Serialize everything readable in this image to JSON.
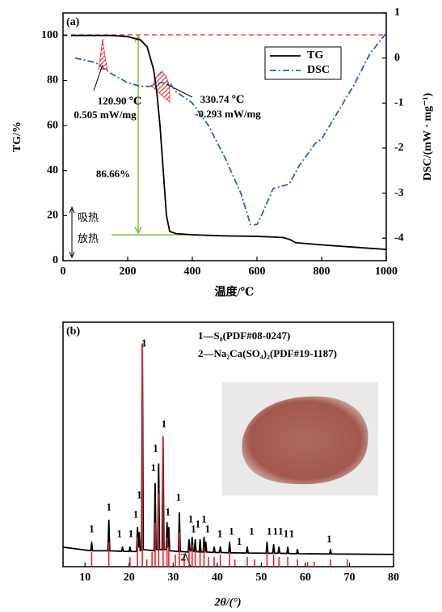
{
  "chart_data": [
    {
      "type": "line",
      "label": "(a)",
      "x_label": "温度/℃",
      "y_label": "TG/%",
      "y2_label": "DSC/(mW · mg⁻¹)",
      "xlim": [
        0,
        1000
      ],
      "xticks": [
        0,
        200,
        400,
        600,
        800,
        1000
      ],
      "ylim": [
        0,
        110
      ],
      "yticks": [
        0,
        20,
        40,
        60,
        80,
        100
      ],
      "y2lim": [
        -4.5,
        1.0
      ],
      "y2ticks": [
        -4,
        -3,
        -2,
        -1,
        0,
        1
      ],
      "legend": "upper right",
      "series": [
        {
          "name": "TG",
          "color": "#000000",
          "x": [
            25,
            150,
            200,
            240,
            260,
            280,
            290,
            300,
            310,
            320,
            330,
            350,
            400,
            500,
            600,
            680,
            700,
            720,
            800,
            900,
            1000
          ],
          "values": [
            100,
            100,
            99.5,
            98,
            95,
            85,
            75,
            60,
            40,
            20,
            13,
            12,
            11.5,
            11,
            10.8,
            10.3,
            9.5,
            8,
            7,
            6,
            5
          ]
        },
        {
          "name": "DSC",
          "color": "#2b5fc2",
          "dash": "8 3 2 3",
          "axis": "y2",
          "x": [
            37,
            100,
            150,
            200,
            240,
            270,
            300,
            330,
            350,
            400,
            450,
            500,
            550,
            580,
            600,
            620,
            650,
            700,
            730,
            780,
            800,
            850,
            900,
            950,
            1000
          ],
          "values": [
            0,
            -0.1,
            -0.35,
            -0.55,
            -0.63,
            -0.63,
            -0.55,
            -0.55,
            -0.75,
            -1.0,
            -1.5,
            -2.2,
            -3.0,
            -3.7,
            -3.7,
            -3.4,
            -2.9,
            -2.8,
            -2.4,
            -1.9,
            -1.8,
            -1.2,
            -0.6,
            0.1,
            0.55
          ]
        }
      ],
      "annotations": [
        "120.90 ℃",
        "0.505 mW/mg",
        "330.74 ℃",
        "-0.293 mW/mg",
        "86.66%",
        "吸热",
        "放热"
      ]
    },
    {
      "type": "line",
      "label": "(b)",
      "x_label": "2θ/(°)",
      "xlim": [
        5,
        80
      ],
      "xticks": [
        10,
        20,
        30,
        40,
        50,
        60,
        70,
        80
      ],
      "ylim": [
        0,
        100
      ],
      "legend_texts": [
        "1—S₈(PDF#08-0247)",
        "2—Na₂Ca(SO₄)₂(PDF#19-1187)"
      ],
      "series": [
        {
          "color": "#000000",
          "x": [
            5,
            11.3,
            11.5,
            11.7,
            15.2,
            15.4,
            15.6,
            18.3,
            18.5,
            18.7,
            20.0,
            20.2,
            20.4,
            21.7,
            21.9,
            22.1,
            22.3,
            22.5,
            22.85,
            23.0,
            23.2,
            25.7,
            25.9,
            26.1,
            26.5,
            26.7,
            26.9,
            27.5,
            27.7,
            27.9,
            28.4,
            28.6,
            28.8,
            29.0,
            29.2,
            31.2,
            31.4,
            31.6,
            33.4,
            33.6,
            33.8,
            34.1,
            34.3,
            34.5,
            34.8,
            35.0,
            35.2,
            35.9,
            36.1,
            36.3,
            36.8,
            37.0,
            37.2,
            37.4,
            37.6,
            39.1,
            39.3,
            39.5,
            40.5,
            40.7,
            40.9,
            42.6,
            42.8,
            43.0,
            46.6,
            46.8,
            47.0,
            51.1,
            51.3,
            51.5,
            52.6,
            52.8,
            53.0,
            53.8,
            54.0,
            54.2,
            55.8,
            56.0,
            56.2,
            58.0,
            58.2,
            58.4,
            65.5,
            65.7,
            65.9,
            80
          ],
          "values": [
            8,
            6.5,
            10,
            6.5,
            6.5,
            19,
            6.5,
            6.3,
            8,
            6.3,
            6.2,
            8,
            6.2,
            6.2,
            16,
            8,
            14,
            6.5,
            7,
            91,
            7,
            6.5,
            34,
            7,
            7,
            42,
            7,
            7,
            53,
            7,
            7,
            18,
            8,
            16,
            6.5,
            6.2,
            22,
            6.2,
            6,
            11,
            6.5,
            6.5,
            12,
            6.5,
            6.2,
            11,
            6.2,
            6,
            11,
            6,
            6,
            12,
            6,
            10,
            6,
            5.8,
            8,
            5.8,
            5.8,
            8,
            5.8,
            5.7,
            10,
            5.7,
            5.6,
            8,
            5.6,
            5.5,
            10,
            5.5,
            5.5,
            9,
            5.5,
            5.5,
            8,
            5.5,
            5.4,
            8,
            5.4,
            5.3,
            7,
            5.3,
            5.2,
            7,
            5.2,
            5
          ]
        },
        {
          "color": "#e8232a",
          "style": "stick",
          "x": [
            11.5,
            15.4,
            20.2,
            21.9,
            23.0,
            24.0,
            25.2,
            25.9,
            26.7,
            27.7,
            28.6,
            29.0,
            30.5,
            31.4,
            32.5,
            33.6,
            34.3,
            35.0,
            36.1,
            37.0,
            38.0,
            39.3,
            40.7,
            42.8,
            44.0,
            46.8,
            48.5,
            51.3,
            52.8,
            54.0,
            56.0,
            58.2,
            60.5,
            62.0,
            65.7,
            69.5
          ],
          "values": [
            6,
            10,
            4,
            12,
            91,
            3,
            6,
            18,
            30,
            53,
            12,
            8,
            5,
            14,
            4,
            7,
            9,
            6,
            6,
            8,
            4,
            4,
            5,
            6,
            3,
            4,
            3,
            6,
            5,
            4,
            4,
            3,
            2,
            2,
            3,
            3
          ]
        }
      ],
      "peak_labels": [
        {
          "text": "1",
          "x": 11.5,
          "y": 15
        },
        {
          "text": "1",
          "x": 15.4,
          "y": 24
        },
        {
          "text": "1",
          "x": 17.8,
          "y": 13
        },
        {
          "text": "1",
          "x": 20.4,
          "y": 13
        },
        {
          "text": "1",
          "x": 21.5,
          "y": 21
        },
        {
          "text": "1",
          "x": 22.3,
          "y": 29
        },
        {
          "text": "1",
          "x": 23.4,
          "y": 91
        },
        {
          "text": "1",
          "x": 25.5,
          "y": 40
        },
        {
          "text": "1",
          "x": 26.0,
          "y": 48
        },
        {
          "text": "1",
          "x": 27.9,
          "y": 58
        },
        {
          "text": "1",
          "x": 28.8,
          "y": 22
        },
        {
          "text": "1",
          "x": 31.2,
          "y": 28
        },
        {
          "text": "1",
          "x": 34.0,
          "y": 19
        },
        {
          "text": "1",
          "x": 34.6,
          "y": 15
        },
        {
          "text": "1",
          "x": 35.6,
          "y": 17
        },
        {
          "text": "1",
          "x": 37.0,
          "y": 19
        },
        {
          "text": "1",
          "x": 37.8,
          "y": 15
        },
        {
          "text": "1",
          "x": 40.6,
          "y": 13
        },
        {
          "text": "1",
          "x": 43.2,
          "y": 14
        },
        {
          "text": "1",
          "x": 45.0,
          "y": 10
        },
        {
          "text": "1",
          "x": 47.8,
          "y": 14
        },
        {
          "text": "1",
          "x": 51.8,
          "y": 14
        },
        {
          "text": "1",
          "x": 53.2,
          "y": 14
        },
        {
          "text": "1",
          "x": 54.4,
          "y": 14
        },
        {
          "text": "1",
          "x": 55.6,
          "y": 13
        },
        {
          "text": "1",
          "x": 56.9,
          "y": 13
        },
        {
          "text": "1",
          "x": 65.4,
          "y": 11
        },
        {
          "text": "2",
          "x": 32.3,
          "y": 3.5
        }
      ]
    }
  ]
}
